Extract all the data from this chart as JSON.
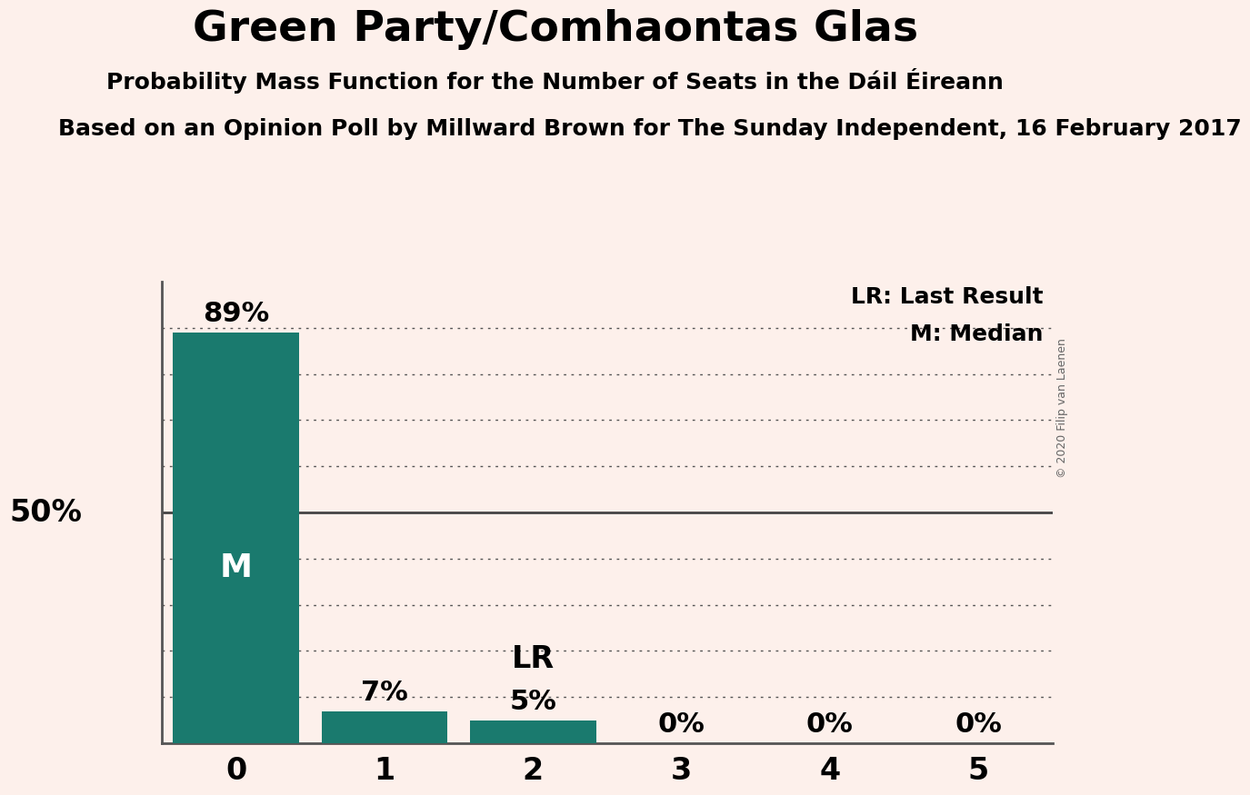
{
  "title": "Green Party/Comhaontas Glas",
  "subtitle": "Probability Mass Function for the Number of Seats in the Dáil Éireann",
  "source_line": "Based on an Opinion Poll by Millward Brown for The Sunday Independent, 16 February 2017",
  "copyright": "© 2020 Filip van Laenen",
  "seats": [
    0,
    1,
    2,
    3,
    4,
    5
  ],
  "probabilities": [
    0.89,
    0.07,
    0.05,
    0.0,
    0.0,
    0.0
  ],
  "bar_color": "#1a7a6e",
  "background_color": "#fdf0eb",
  "median": 0,
  "last_result": 2,
  "y_label_50": "50%",
  "y_max": 1.0,
  "legend_lr": "LR: Last Result",
  "legend_m": "M: Median",
  "grid_lines": [
    0.1,
    0.2,
    0.3,
    0.4,
    0.5,
    0.6,
    0.7,
    0.8,
    0.9
  ],
  "solid_line": 0.5,
  "title_fontsize": 34,
  "subtitle_fontsize": 18,
  "source_fontsize": 18,
  "bar_label_fontsize": 22,
  "axis_fontsize": 24,
  "y_axis_label_fontsize": 24,
  "legend_fontsize": 18,
  "marker_fontsize": 22,
  "copyright_fontsize": 9
}
